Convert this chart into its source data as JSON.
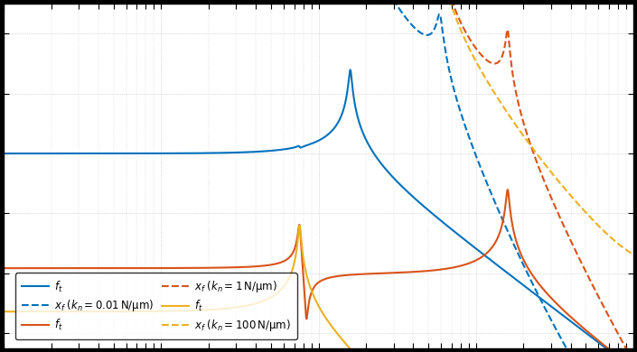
{
  "fig_width": 7.05,
  "fig_height": 3.9,
  "dpi": 100,
  "colors": {
    "blue": "#0072BD",
    "orange": "#D95319",
    "yellow": "#EDB120"
  },
  "legend_entries": [
    {
      "label_solid": "$f_t$",
      "label_dashed": "$x_f \\;(k_n = 0.01\\,\\mathrm{N/\\mu m})$",
      "color": "#0072BD"
    },
    {
      "label_solid": "$f_t$",
      "label_dashed": "$x_f \\;(k_n = 1\\,\\mathrm{N/\\mu m})$",
      "color": "#D95319"
    },
    {
      "label_solid": "$f_t$",
      "label_dashed": "$x_f \\;(k_n = 100\\,\\mathrm{N/\\mu m})$",
      "color": "#EDB120"
    }
  ],
  "ylim": [
    -145,
    -30
  ],
  "xlim_log": [
    -1,
    3
  ]
}
